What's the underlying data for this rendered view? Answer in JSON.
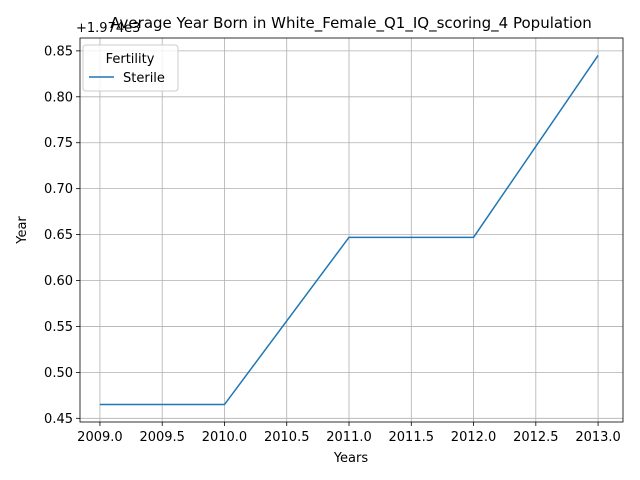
{
  "chart_data": {
    "type": "line",
    "title": "Average Year Born in White_Female_Q1_IQ_scoring_4 Population",
    "x_label": "Years",
    "y_label": "Year",
    "y_offset_label": "+1.974e3",
    "legend_title": "Fertility",
    "legend": "upper left",
    "grid": true,
    "x": [
      2009,
      2010,
      2011,
      2012,
      2013
    ],
    "series": [
      {
        "name": "Sterile",
        "color": "#1f77b4",
        "values": [
          0.465,
          0.465,
          0.647,
          0.647,
          0.845
        ]
      }
    ],
    "xlim": [
      2008.84,
      2013.2
    ],
    "xticks": [
      {
        "value": 2009,
        "label": "2009.0"
      },
      {
        "value": 2009.5,
        "label": "2009.5"
      },
      {
        "value": 2010,
        "label": "2010.0"
      },
      {
        "value": 2010.5,
        "label": "2010.5"
      },
      {
        "value": 2011,
        "label": "2011.0"
      },
      {
        "value": 2011.5,
        "label": "2011.5"
      },
      {
        "value": 2012,
        "label": "2012.0"
      },
      {
        "value": 2012.5,
        "label": "2012.5"
      },
      {
        "value": 2013,
        "label": "2013.0"
      }
    ],
    "ylim": [
      0.446,
      0.864
    ],
    "yticks": [
      0.45,
      {
        "value": 0.5,
        "label": "0.50"
      },
      0.55,
      {
        "value": 0.6,
        "label": "0.60"
      },
      0.65,
      {
        "value": 0.7,
        "label": "0.70"
      },
      0.75,
      {
        "value": 0.8,
        "label": "0.80"
      },
      0.85
    ]
  }
}
